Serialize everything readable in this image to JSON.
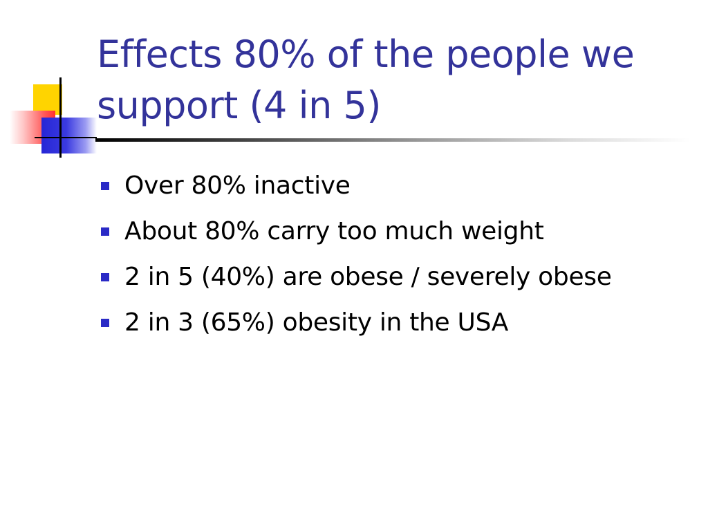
{
  "slide": {
    "title": "Effects 80% of the people we support (4 in 5)",
    "bullets": [
      "Over 80% inactive",
      "About 80% carry too much weight",
      "2 in 5 (40%) are obese / severely obese",
      "2 in 3 (65%) obesity in the USA"
    ]
  },
  "colors": {
    "title": "#33339a",
    "bullet_marker": "#2a2ac6",
    "text": "#000000",
    "deco_yellow": "#ffd400",
    "deco_red": "#ff3030",
    "deco_blue": "#2626d6"
  }
}
